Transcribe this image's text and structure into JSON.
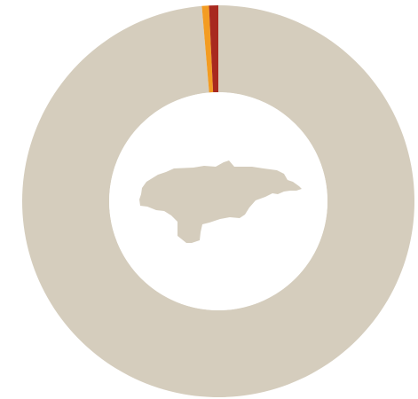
{
  "chart_data": {
    "type": "pie",
    "variant": "donut",
    "title": "",
    "slices": [
      {
        "value": 98.66,
        "color": "#d5cdbd"
      },
      {
        "value": 0.58,
        "color": "#f39c22"
      },
      {
        "value": 0.76,
        "color": "#a8291f"
      }
    ],
    "start": "top",
    "direction": "clockwise",
    "center_icon": "honduras-map-icon",
    "center_icon_color": "#d5cdbd",
    "legend": "none",
    "labels": "none"
  }
}
